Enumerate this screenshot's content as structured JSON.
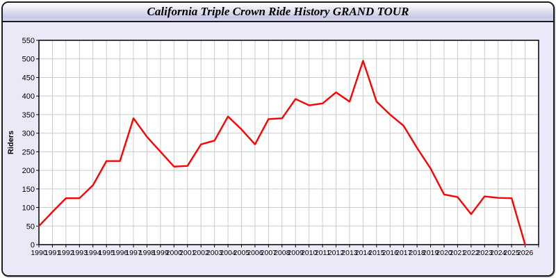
{
  "window": {
    "title": "California Triple Crown Ride History GRAND TOUR"
  },
  "chart_data": {
    "type": "line",
    "title": "California Triple Crown Ride History GRAND TOUR",
    "xlabel": "",
    "ylabel": "Riders",
    "x": [
      1990,
      1991,
      1992,
      1993,
      1994,
      1995,
      1996,
      1997,
      1998,
      1999,
      2000,
      2001,
      2002,
      2003,
      2004,
      2005,
      2006,
      2007,
      2008,
      2009,
      2010,
      2011,
      2012,
      2013,
      2014,
      2015,
      2016,
      2017,
      2018,
      2019,
      2020,
      2021,
      2022,
      2023,
      2024,
      2025,
      2026
    ],
    "values": [
      50,
      88,
      125,
      125,
      160,
      225,
      225,
      340,
      290,
      250,
      210,
      212,
      270,
      280,
      345,
      310,
      270,
      338,
      340,
      392,
      375,
      380,
      410,
      385,
      495,
      385,
      350,
      320,
      260,
      205,
      135,
      128,
      82,
      130,
      126,
      125,
      0
    ],
    "ylim": [
      0,
      550
    ],
    "ytick_step": 50,
    "grid": true,
    "legend_position": "none",
    "colors": {
      "line": "#ff0000",
      "grid": "#cbcbcb",
      "plot_bg": "#ffffff",
      "panel_bg": "#e9e9f8",
      "axis": "#000000",
      "text": "#000000"
    }
  }
}
